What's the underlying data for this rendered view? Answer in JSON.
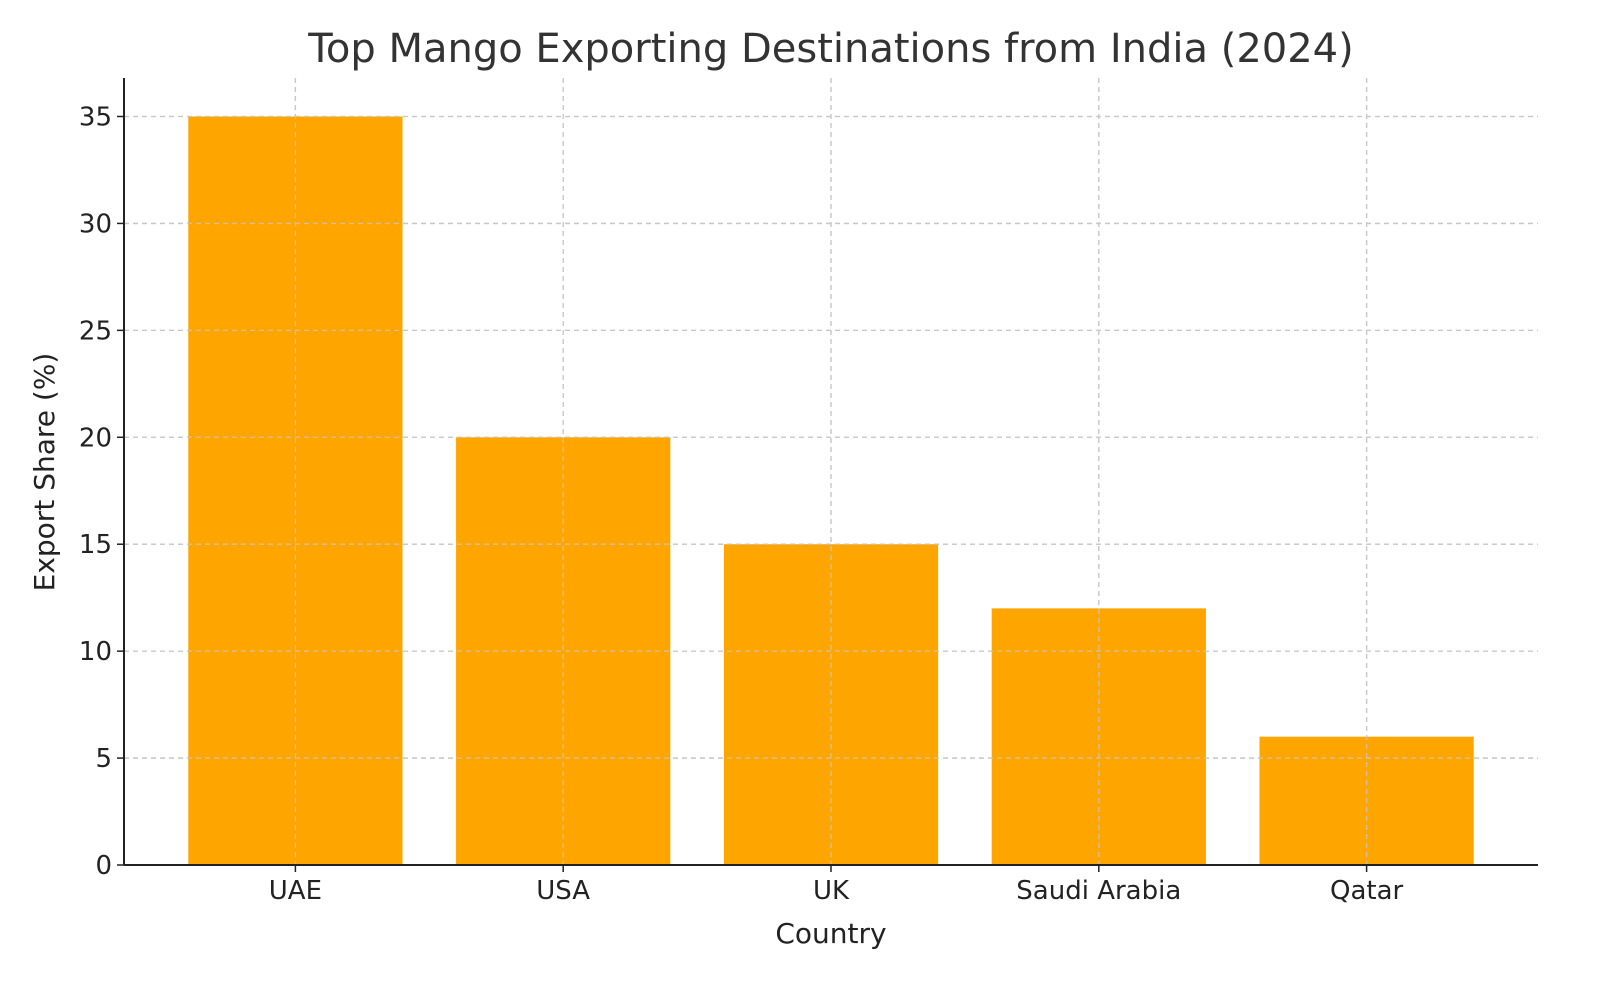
{
  "chart_data": {
    "type": "bar",
    "title": "Top Mango Exporting Destinations from India (2024)",
    "xlabel": "Country",
    "ylabel": "Export Share (%)",
    "categories": [
      "UAE",
      "USA",
      "UK",
      "Saudi Arabia",
      "Qatar"
    ],
    "values": [
      35,
      20,
      15,
      12,
      6
    ],
    "ylim": [
      0,
      36.8
    ],
    "yticks": [
      0,
      5,
      10,
      15,
      20,
      25,
      30,
      35
    ],
    "grid": true,
    "bar_color": "#FFA500"
  }
}
